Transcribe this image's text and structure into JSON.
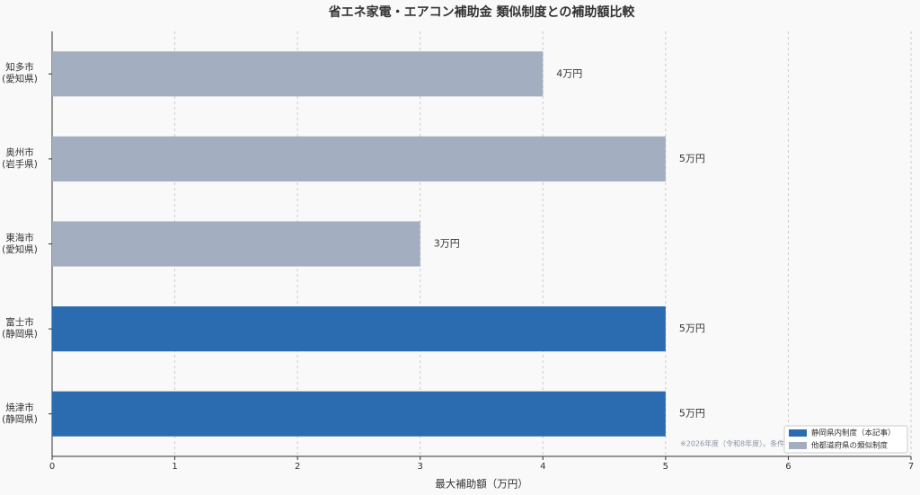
{
  "chart_data": {
    "type": "barh",
    "title": "省エネ家電・エアコン補助金 類似制度との補助額比較",
    "x_label": "最大補助額（万円）",
    "categories": [
      "知多市\n(愛知県)",
      "奥州市\n(岩手県)",
      "東海市\n(愛知県)",
      "富士市\n(静岡県)",
      "焼津市\n(静岡県)"
    ],
    "values": [
      4,
      5,
      3,
      5,
      5
    ],
    "value_labels": [
      "4万円",
      "5万円",
      "3万円",
      "5万円",
      "5万円"
    ],
    "colors": [
      "#a3aec0",
      "#a3aec0",
      "#a3aec0",
      "#2b6cb0",
      "#2b6cb0"
    ],
    "xlim": [
      0,
      7
    ],
    "xticks": [
      0,
      1,
      2,
      3,
      4,
      5,
      6,
      7
    ],
    "grid": true,
    "legend": [
      {
        "name": "静岡県内制度（本記事）",
        "color": "#2b6cb0"
      },
      {
        "name": "他都道府県の類似制度",
        "color": "#a3aec0"
      }
    ],
    "legend_position": "lower right",
    "note": "※2026年度（令和8年度）。条件"
  }
}
